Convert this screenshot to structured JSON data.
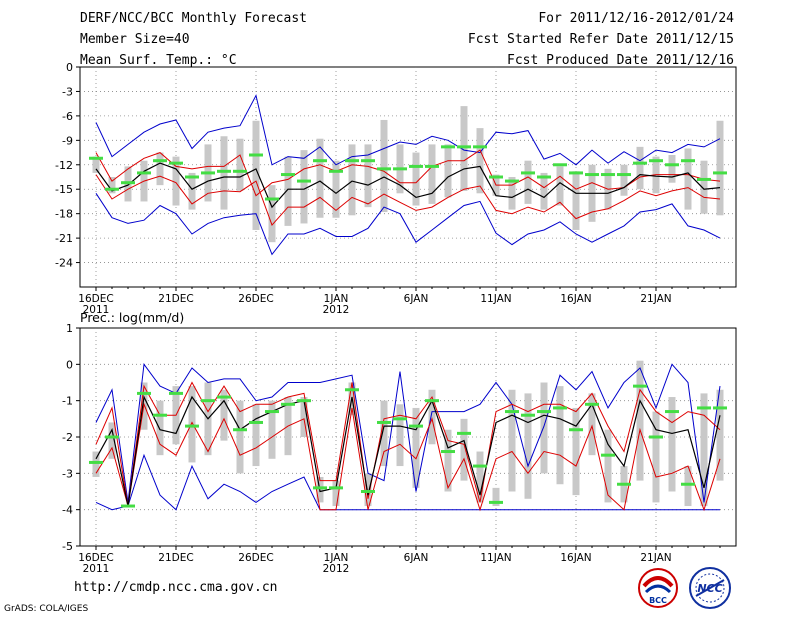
{
  "header": {
    "title": "DERF/NCC/BCC Monthly Forecast",
    "member_size": "Member Size=40",
    "variable_top": "Mean Surf. Temp.: °C",
    "forecast_period": "For 2011/12/16-2012/01/24",
    "started_date": "Fcst Started Refer Date 2011/12/15",
    "produced_date": "Fcst Produced Date 2011/12/16"
  },
  "footer": {
    "url": "http://cmdp.ncc.cma.gov.cn",
    "grads": "GrADS: COLA/IGES"
  },
  "logos": {
    "bcc_label": "BCC",
    "ncc_label": "NCC"
  },
  "colors": {
    "max": "#0000cc",
    "mean": "#000000",
    "spread": "#dd0000",
    "box": "#c8c8c8",
    "marker": "#44dd44"
  },
  "chart_data": [
    {
      "type": "line",
      "title": "Mean Surf. Temp.: °C",
      "ylim": [
        -27,
        0
      ],
      "yticks": [
        0,
        -3,
        -6,
        -9,
        -12,
        -15,
        -18,
        -21,
        -24
      ],
      "ytick_labels": [
        "0",
        "-3",
        "-6",
        "-9",
        "-12",
        "-15",
        "-18",
        "-21",
        "-24"
      ],
      "x": [
        1,
        2,
        3,
        4,
        5,
        6,
        7,
        8,
        9,
        10,
        11,
        12,
        13,
        14,
        15,
        16,
        17,
        18,
        19,
        20,
        21,
        22,
        23,
        24,
        25,
        26,
        27,
        28,
        29,
        30,
        31,
        32,
        33,
        34,
        35,
        36,
        37,
        38,
        39,
        40
      ],
      "xticks": [
        1,
        6,
        11,
        16,
        21,
        26,
        31,
        36
      ],
      "xtick_labels": [
        "16DEC",
        "21DEC",
        "26DEC",
        "1JAN",
        "6JAN",
        "11JAN",
        "16JAN",
        "21JAN"
      ],
      "xtick_sublabels": [
        "2011",
        "",
        "",
        "2012",
        "",
        "",
        "",
        ""
      ],
      "series": [
        {
          "name": "max",
          "values": [
            -6.8,
            -11,
            -9.5,
            -8,
            -7,
            -6.5,
            -10,
            -8,
            -7.5,
            -7.2,
            -3.5,
            -12,
            -11,
            -11.2,
            -9.8,
            -12,
            -11,
            -10.8,
            -10,
            -9.2,
            -9.5,
            -8.5,
            -9,
            -10.2,
            -10.5,
            -8,
            -8.2,
            -7.8,
            -11.3,
            -10.6,
            -12,
            -10.2,
            -11.8,
            -10.4,
            -11.5,
            -10.2,
            -10.5,
            -9.5,
            -9.8,
            -8.8
          ]
        },
        {
          "name": "spread_upper",
          "values": [
            -10.5,
            -14,
            -12.5,
            -11.2,
            -10.5,
            -12.2,
            -12.5,
            -12.2,
            -12.2,
            -10.8,
            -15.8,
            -14.2,
            -13.8,
            -12.5,
            -12,
            -12.8,
            -12,
            -12.2,
            -12.8,
            -14.2,
            -14.2,
            -12.2,
            -11.5,
            -11.5,
            -10.2,
            -14.5,
            -14.5,
            -13.5,
            -14.8,
            -13.4,
            -15,
            -14.2,
            -15,
            -14.8,
            -13.5,
            -13.2,
            -13.2,
            -13.2,
            -13.8,
            -14
          ]
        },
        {
          "name": "mean",
          "values": [
            -12.5,
            -15.2,
            -14.5,
            -12.8,
            -11.8,
            -12.5,
            -15,
            -14,
            -13.5,
            -13.5,
            -12.5,
            -17.2,
            -15,
            -15,
            -14,
            -15.5,
            -14,
            -14.5,
            -13.5,
            -14.5,
            -16,
            -15.5,
            -13.5,
            -12.5,
            -12.2,
            -15.8,
            -16,
            -15,
            -16,
            -14.2,
            -15.5,
            -15.5,
            -15.5,
            -14.8,
            -13.2,
            -13.4,
            -13.5,
            -13,
            -15,
            -14.8
          ]
        },
        {
          "name": "spread_lower",
          "values": [
            -13.2,
            -16.2,
            -15,
            -14,
            -13.4,
            -14.2,
            -16.8,
            -15.5,
            -15.2,
            -15.3,
            -14,
            -19.4,
            -17.2,
            -17.2,
            -16,
            -17.6,
            -16,
            -16.8,
            -15.6,
            -16.6,
            -17.6,
            -17.2,
            -16,
            -15,
            -14.6,
            -17.6,
            -18,
            -17.2,
            -17.8,
            -16.6,
            -18.6,
            -17.8,
            -17.4,
            -16.4,
            -15.2,
            -15.8,
            -15.2,
            -14.8,
            -16,
            -16.2
          ]
        },
        {
          "name": "min",
          "values": [
            -15.5,
            -18.5,
            -19.2,
            -18.8,
            -17,
            -18,
            -20.5,
            -19.2,
            -18.5,
            -18.2,
            -18,
            -23,
            -20.5,
            -20.5,
            -19.8,
            -20.8,
            -20.8,
            -19.8,
            -17.2,
            -18,
            -21.5,
            -20,
            -18.5,
            -17,
            -16.5,
            -20.4,
            -21.8,
            -20.5,
            -20,
            -19,
            -20.5,
            -21.5,
            -20.5,
            -19.5,
            -17.8,
            -17.5,
            -16.8,
            -19.5,
            -20,
            -21
          ]
        },
        {
          "name": "observed_markers",
          "values": [
            -11.2,
            -15,
            -14.2,
            -13,
            -11.5,
            -11.8,
            -13.5,
            -13,
            -12.8,
            -12.8,
            -10.8,
            -16.2,
            -13.2,
            -14,
            -11.5,
            -12.8,
            -11.5,
            -11.5,
            -12.5,
            -12.5,
            -12.2,
            -12.2,
            -9.8,
            -9.8,
            -9.8,
            -13.5,
            -14,
            -13,
            -13.5,
            -12,
            -13,
            -13.2,
            -13.2,
            -13.2,
            -11.8,
            -11.5,
            -12,
            -11.5,
            -13.8,
            -13
          ]
        },
        {
          "name": "box_upper",
          "values": [
            -11,
            -13.5,
            -12.2,
            -11.5,
            -10.5,
            -11,
            -13,
            -9.5,
            -8.5,
            -8.8,
            -6.6,
            -14.5,
            -11,
            -10.2,
            -8.8,
            -11.5,
            -9.5,
            -9.5,
            -6.5,
            -9.5,
            -10.5,
            -9.5,
            -9.5,
            -4.8,
            -7.5,
            -13.2,
            -13.5,
            -11.5,
            -13,
            -12.2,
            -12.8,
            -12,
            -12.5,
            -12,
            -9.8,
            -11,
            -10.8,
            -10,
            -11.5,
            -6.6
          ]
        },
        {
          "name": "box_lower",
          "values": [
            -13,
            -15.5,
            -16.5,
            -16.5,
            -14.5,
            -17,
            -17.5,
            -16.5,
            -17.5,
            -15.2,
            -20,
            -21.5,
            -19.5,
            -19.2,
            -18.5,
            -18.5,
            -18.2,
            -17.2,
            -17.8,
            -15.5,
            -17,
            -16.8,
            -16,
            -15.2,
            -15.5,
            -15.8,
            -17.5,
            -16.8,
            -17.5,
            -17,
            -20,
            -19,
            -17.5,
            -15.8,
            -15,
            -15.5,
            -14.2,
            -17.5,
            -18,
            -18.2
          ]
        }
      ]
    },
    {
      "type": "line",
      "title": "Prec.: log(mm/d)",
      "ylim": [
        -5,
        1
      ],
      "yticks": [
        1,
        0,
        -1,
        -2,
        -3,
        -4,
        -5
      ],
      "ytick_labels": [
        "1",
        "0",
        "-1",
        "-2",
        "-3",
        "-4",
        "-5"
      ],
      "x": [
        1,
        2,
        3,
        4,
        5,
        6,
        7,
        8,
        9,
        10,
        11,
        12,
        13,
        14,
        15,
        16,
        17,
        18,
        19,
        20,
        21,
        22,
        23,
        24,
        25,
        26,
        27,
        28,
        29,
        30,
        31,
        32,
        33,
        34,
        35,
        36,
        37,
        38,
        39,
        40
      ],
      "xticks": [
        1,
        6,
        11,
        16,
        21,
        26,
        31,
        36
      ],
      "xtick_labels": [
        "16DEC",
        "21DEC",
        "26DEC",
        "1JAN",
        "6JAN",
        "11JAN",
        "16JAN",
        "21JAN"
      ],
      "xtick_sublabels": [
        "2011",
        "",
        "",
        "2012",
        "",
        "",
        "",
        ""
      ],
      "series": [
        {
          "name": "max",
          "values": [
            -1.6,
            -0.7,
            -3.8,
            0,
            -0.6,
            -0.8,
            -0.1,
            -0.5,
            -0.4,
            -0.4,
            -1,
            -0.9,
            -0.5,
            -0.5,
            -0.5,
            -0.4,
            -0.3,
            -3,
            -3.2,
            -0.2,
            -3.5,
            -1.3,
            -1.3,
            -1.3,
            -1.1,
            -0.5,
            -1.1,
            -2.8,
            -1.7,
            -0.3,
            -0.7,
            -0.2,
            -1.2,
            -0.5,
            -0.1,
            -1.2,
            0,
            -0.5,
            -3.8,
            -0.6
          ]
        },
        {
          "name": "spread_upper",
          "values": [
            -2.2,
            -1.2,
            -3.9,
            -0.6,
            -1.4,
            -1.4,
            -0.5,
            -1.3,
            -0.6,
            -1.3,
            -1.1,
            -1.1,
            -0.9,
            -0.8,
            -3.2,
            -3.2,
            -0.5,
            -3.7,
            -1.5,
            -1.4,
            -1.5,
            -0.9,
            -2.1,
            -2.2,
            -3.8,
            -1.3,
            -1.1,
            -1.3,
            -1.1,
            -1.1,
            -1.3,
            -0.8,
            -1.7,
            -2.4,
            -0.7,
            -1.3,
            -1.6,
            -1.3,
            -1.4,
            -1.8
          ]
        },
        {
          "name": "mean",
          "values": [
            -2.6,
            -1.8,
            -3.9,
            -0.9,
            -1.8,
            -1.9,
            -0.9,
            -1.5,
            -1,
            -1.8,
            -1.5,
            -1.3,
            -1.1,
            -1,
            -3.5,
            -3.4,
            -0.9,
            -3.6,
            -1.7,
            -1.7,
            -1.8,
            -1,
            -2.3,
            -2.1,
            -3.6,
            -1.6,
            -1.4,
            -1.6,
            -1.4,
            -1.5,
            -1.7,
            -1.1,
            -2.2,
            -2.8,
            -1,
            -1.8,
            -1.9,
            -1.8,
            -3.4,
            -1.4
          ]
        },
        {
          "name": "spread_lower",
          "values": [
            -3,
            -2.3,
            -3.9,
            -1.1,
            -2.2,
            -2.5,
            -1.6,
            -2.4,
            -1.5,
            -2.5,
            -2.3,
            -2,
            -1.7,
            -1.5,
            -4,
            -4,
            -1.2,
            -4,
            -2.4,
            -2.2,
            -2.6,
            -1.5,
            -3.4,
            -2.6,
            -4,
            -2.6,
            -2.4,
            -3,
            -2.4,
            -2.5,
            -2.8,
            -1.7,
            -3.6,
            -4,
            -1.8,
            -3.1,
            -3,
            -2.8,
            -4,
            -2.6
          ]
        },
        {
          "name": "min",
          "values": [
            -3.8,
            -4,
            -3.9,
            -2.5,
            -3.6,
            -4,
            -2.8,
            -3.7,
            -3.3,
            -3.5,
            -3.8,
            -3.5,
            -3.3,
            -3.1,
            -4,
            -4,
            -4,
            -4,
            -4,
            -4,
            -4,
            -4,
            -4,
            -4,
            -4,
            -4,
            -4,
            -4,
            -4,
            -4,
            -4,
            -4,
            -4,
            -4,
            -4,
            -4,
            -4,
            -4,
            -4,
            -4
          ]
        },
        {
          "name": "observed_markers",
          "values": [
            -2.7,
            -2,
            -3.9,
            -0.8,
            -1.4,
            -0.8,
            -1.7,
            -1,
            -0.9,
            -1.8,
            -1.6,
            -1.3,
            -1.1,
            -1,
            -3.4,
            -3.4,
            -0.7,
            -3.5,
            -1.6,
            -1.5,
            -1.7,
            -1,
            -2.4,
            -1.9,
            -2.8,
            -3.8,
            -1.3,
            -1.4,
            -1.3,
            -1.2,
            -1.8,
            -1.1,
            -2.5,
            -3.3,
            -0.6,
            -2,
            -1.3,
            -3.3,
            -1.2,
            -1.2
          ]
        },
        {
          "name": "box_upper",
          "values": [
            -2.4,
            -1.6,
            -3.9,
            -0.5,
            -1,
            -0.6,
            -0.6,
            -0.5,
            -0.7,
            -1,
            -1.1,
            -1,
            -0.9,
            -0.9,
            -3.1,
            -3.2,
            -0.5,
            -3,
            -1,
            -1.1,
            -1.2,
            -0.7,
            -1.8,
            -1.5,
            -2.4,
            -3.4,
            -0.7,
            -0.8,
            -0.5,
            -0.6,
            -1.2,
            -0.8,
            -1.8,
            -2.8,
            0.1,
            -1.3,
            -0.9,
            -2.8,
            -0.8,
            -0.7
          ]
        },
        {
          "name": "box_lower",
          "values": [
            -3.1,
            -2.6,
            -3.9,
            -1.8,
            -2.5,
            -2.2,
            -2.7,
            -2.5,
            -2.1,
            -3,
            -2.8,
            -2.6,
            -2.5,
            -2,
            -3.8,
            -3.9,
            -1.4,
            -3.9,
            -2.8,
            -2.8,
            -3.4,
            -2.2,
            -3.5,
            -3.2,
            -3.8,
            -3.9,
            -3.5,
            -3.7,
            -3,
            -3.3,
            -3.6,
            -2.5,
            -3.8,
            -3.8,
            -3.2,
            -3.8,
            -3.5,
            -3.9,
            -3.9,
            -3.2
          ]
        }
      ]
    }
  ]
}
